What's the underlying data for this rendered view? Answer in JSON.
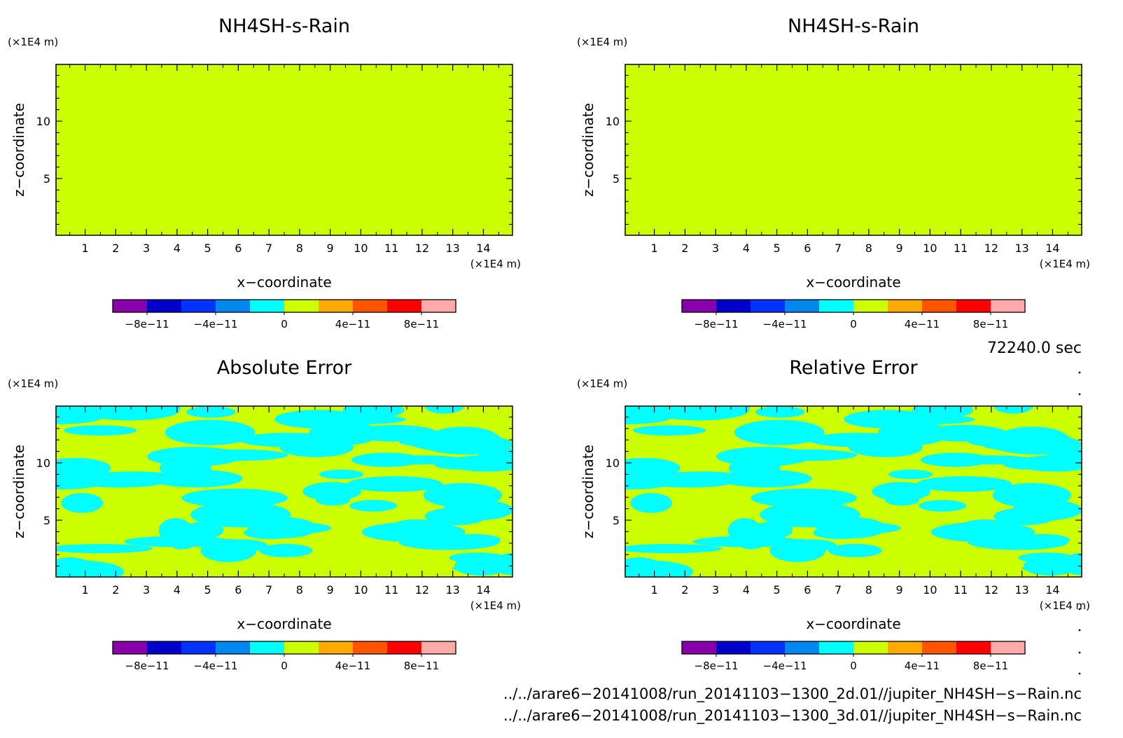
{
  "figure": {
    "time_label": "72240.0 sec",
    "files": [
      "../../arare6-20141008/run_20141103-1300_2d.01//jupiter_NH4SH-s-Rain.nc",
      "../../arare6-20141008/run_20141103-1300_3d.01//jupiter_NH4SH-s-Rain.nc"
    ]
  },
  "colorbar": {
    "colors": [
      "#8800aa",
      "#0000cc",
      "#0033ff",
      "#0088ee",
      "#00ffff",
      "#ccff00",
      "#ffaa00",
      "#ff5500",
      "#ff0000",
      "#ffaaaa"
    ],
    "tick_labels": [
      "-8e-11",
      "-4e-11",
      "0",
      "4e-11",
      "8e-11"
    ],
    "tick_values": [
      -8e-11,
      -4e-11,
      0,
      4e-11,
      8e-11
    ],
    "range": [
      -1e-10,
      1e-10
    ]
  },
  "chart_data": [
    {
      "type": "heatmap",
      "title": "NH4SH-s-Rain",
      "xlabel": "x-coordinate",
      "ylabel": "z-coordinate",
      "x_unit": "(x1E4 m)",
      "y_unit": "(x1E4 m)",
      "xlim": [
        0.05,
        14.95
      ],
      "ylim": [
        0.05,
        14.95
      ],
      "x_ticks": [
        1,
        2,
        3,
        4,
        5,
        6,
        7,
        8,
        9,
        10,
        11,
        12,
        13,
        14
      ],
      "y_ticks": [
        5,
        10
      ],
      "field": "uniform",
      "value": 0,
      "fill_color": "#ccff00"
    },
    {
      "type": "heatmap",
      "title": "NH4SH-s-Rain",
      "xlabel": "x-coordinate",
      "ylabel": "z-coordinate",
      "x_unit": "(x1E4 m)",
      "y_unit": "(x1E4 m)",
      "xlim": [
        0.05,
        14.95
      ],
      "ylim": [
        0.05,
        14.95
      ],
      "x_ticks": [
        1,
        2,
        3,
        4,
        5,
        6,
        7,
        8,
        9,
        10,
        11,
        12,
        13,
        14
      ],
      "y_ticks": [
        5,
        10
      ],
      "field": "uniform",
      "value": 0,
      "fill_color": "#ccff00"
    },
    {
      "type": "heatmap",
      "title": "Absolute Error",
      "xlabel": "x-coordinate",
      "ylabel": "z-coordinate",
      "x_unit": "(x1E4 m)",
      "y_unit": "(x1E4 m)",
      "xlim": [
        0.05,
        14.95
      ],
      "ylim": [
        0.05,
        14.95
      ],
      "x_ticks": [
        1,
        2,
        3,
        4,
        5,
        6,
        7,
        8,
        9,
        10,
        11,
        12,
        13,
        14
      ],
      "y_ticks": [
        5,
        10
      ],
      "field": "banded",
      "base_color": "#ccff00",
      "patch_color": "#00ffff"
    },
    {
      "type": "heatmap",
      "title": "Relative Error",
      "xlabel": "x-coordinate",
      "ylabel": "z-coordinate",
      "x_unit": "(x1E4 m)",
      "y_unit": "(x1E4 m)",
      "xlim": [
        0.05,
        14.95
      ],
      "ylim": [
        0.05,
        14.95
      ],
      "x_ticks": [
        1,
        2,
        3,
        4,
        5,
        6,
        7,
        8,
        9,
        10,
        11,
        12,
        13,
        14
      ],
      "y_ticks": [
        5,
        10
      ],
      "field": "banded",
      "base_color": "#ccff00",
      "patch_color": "#00ffff"
    }
  ]
}
